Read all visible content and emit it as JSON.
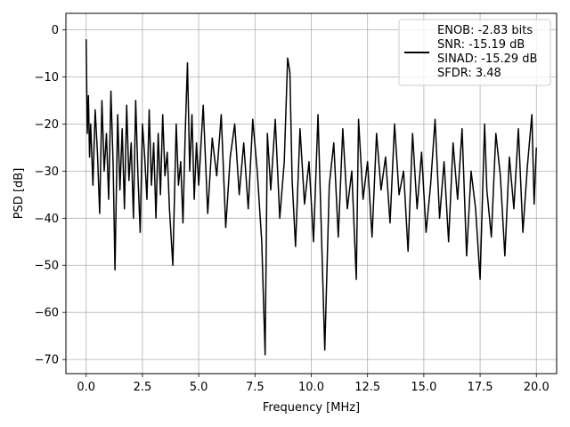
{
  "chart_data": {
    "type": "line",
    "title": "",
    "xlabel": "Frequency [MHz]",
    "ylabel": "PSD [dB]",
    "xlim": [
      -0.9,
      20.9
    ],
    "ylim": [
      -73,
      3.5
    ],
    "xticks": [
      0.0,
      2.5,
      5.0,
      7.5,
      10.0,
      12.5,
      15.0,
      17.5,
      20.0
    ],
    "xtick_labels": [
      "0.0",
      "2.5",
      "5.0",
      "7.5",
      "10.0",
      "12.5",
      "15.0",
      "17.5",
      "20.0"
    ],
    "yticks": [
      0,
      -10,
      -20,
      -30,
      -40,
      -50,
      -60,
      -70
    ],
    "ytick_labels": [
      "0",
      "−10",
      "−20",
      "−30",
      "−40",
      "−50",
      "−60",
      "−70"
    ],
    "grid": true,
    "legend_position": "top-right",
    "series": [
      {
        "color": "#000000",
        "legend_lines": [
          "ENOB: -2.83 bits",
          "SNR: -15.19 dB",
          "SINAD: -15.29 dB",
          "SFDR: 3.48"
        ],
        "x": [
          0.0,
          0.02,
          0.05,
          0.1,
          0.15,
          0.2,
          0.3,
          0.4,
          0.5,
          0.6,
          0.7,
          0.8,
          0.9,
          1.0,
          1.1,
          1.2,
          1.28,
          1.4,
          1.5,
          1.6,
          1.7,
          1.8,
          1.9,
          2.0,
          2.1,
          2.2,
          2.3,
          2.4,
          2.5,
          2.6,
          2.7,
          2.8,
          2.9,
          3.0,
          3.1,
          3.2,
          3.3,
          3.4,
          3.5,
          3.6,
          3.7,
          3.85,
          4.0,
          4.1,
          4.2,
          4.3,
          4.4,
          4.5,
          4.6,
          4.7,
          4.8,
          4.9,
          5.0,
          5.2,
          5.4,
          5.6,
          5.8,
          6.0,
          6.2,
          6.4,
          6.6,
          6.8,
          7.0,
          7.2,
          7.4,
          7.6,
          7.8,
          7.95,
          8.05,
          8.2,
          8.4,
          8.6,
          8.8,
          8.95,
          9.05,
          9.15,
          9.3,
          9.5,
          9.7,
          9.9,
          10.1,
          10.3,
          10.6,
          10.8,
          11.0,
          11.2,
          11.4,
          11.6,
          11.8,
          12.0,
          12.1,
          12.3,
          12.5,
          12.7,
          12.9,
          13.1,
          13.3,
          13.5,
          13.7,
          13.9,
          14.1,
          14.3,
          14.5,
          14.7,
          14.9,
          15.1,
          15.3,
          15.5,
          15.7,
          15.9,
          16.1,
          16.3,
          16.5,
          16.7,
          16.9,
          17.1,
          17.3,
          17.5,
          17.7,
          17.8,
          18.0,
          18.2,
          18.4,
          18.6,
          18.8,
          19.0,
          19.2,
          19.4,
          19.6,
          19.8,
          19.9,
          20.0
        ],
        "y": [
          -2,
          -10,
          -22,
          -14,
          -27,
          -20,
          -33,
          -17,
          -26,
          -39,
          -15,
          -30,
          -22,
          -36,
          -13,
          -29,
          -51,
          -18,
          -34,
          -21,
          -38,
          -16,
          -32,
          -24,
          -40,
          -15,
          -31,
          -43,
          -20,
          -27,
          -36,
          -17,
          -33,
          -24,
          -40,
          -22,
          -35,
          -18,
          -31,
          -26,
          -38,
          -50,
          -20,
          -33,
          -28,
          -41,
          -22,
          -7,
          -30,
          -18,
          -36,
          -24,
          -33,
          -16,
          -39,
          -23,
          -31,
          -18,
          -42,
          -27,
          -20,
          -35,
          -24,
          -38,
          -19,
          -30,
          -45,
          -69,
          -22,
          -34,
          -19,
          -40,
          -28,
          -6,
          -9,
          -32,
          -46,
          -21,
          -37,
          -28,
          -45,
          -18,
          -68,
          -33,
          -24,
          -44,
          -21,
          -38,
          -30,
          -53,
          -19,
          -36,
          -28,
          -44,
          -22,
          -34,
          -27,
          -41,
          -20,
          -35,
          -30,
          -47,
          -22,
          -38,
          -26,
          -43,
          -33,
          -19,
          -40,
          -28,
          -45,
          -24,
          -36,
          -21,
          -48,
          -30,
          -38,
          -53,
          -20,
          -34,
          -44,
          -22,
          -31,
          -48,
          -27,
          -38,
          -21,
          -43,
          -29,
          -18,
          -37,
          -25
        ]
      }
    ]
  }
}
